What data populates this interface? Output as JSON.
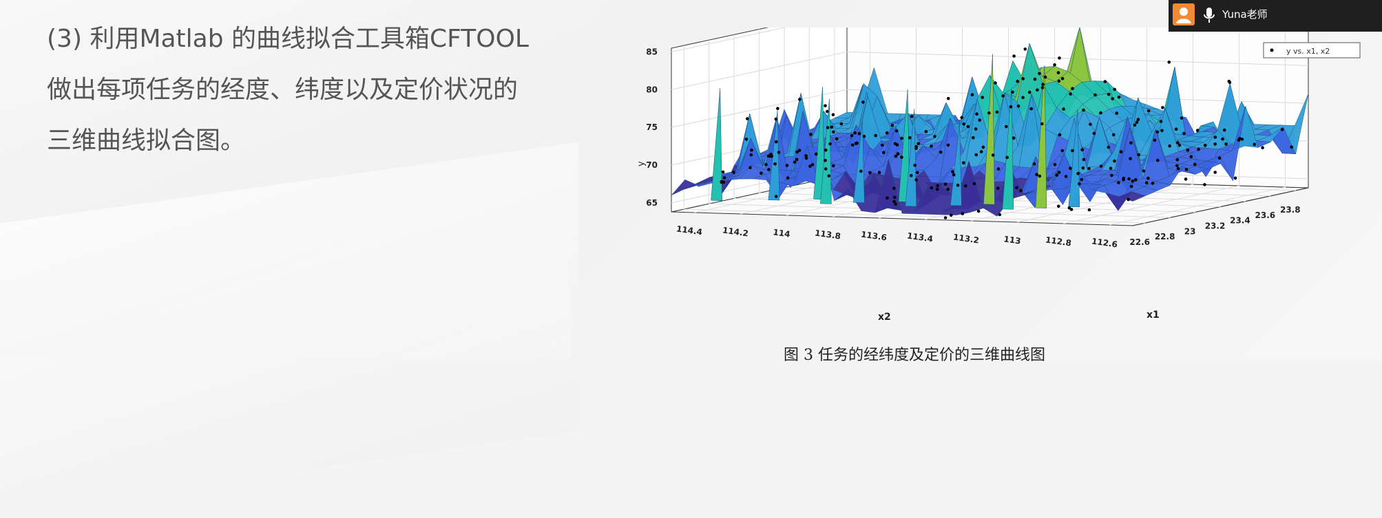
{
  "slide": {
    "text_lines": [
      "(3) 利用Matlab 的曲线拟合工具箱CFTOOL",
      "做出每项任务的经度、纬度以及定价状况的",
      "三维曲线拟合图。"
    ],
    "caption": "图 3  任务的经纬度及定价的三维曲线图"
  },
  "presenter": {
    "name": "Yuna老师",
    "icons": [
      "user-avatar-icon",
      "microphone-icon"
    ],
    "accent": "#f08a34"
  },
  "chart_data": {
    "type": "surface3d",
    "title": "",
    "legend": {
      "label": "y vs. x1, x2",
      "placement": "top-right"
    },
    "zlabel": "y",
    "xlabel": "x2",
    "ylabel": "x1",
    "z_ticks": [
      "85",
      "80",
      "75",
      "70",
      "65"
    ],
    "x2_ticks": [
      "114.4",
      "114.2",
      "114",
      "113.8",
      "113.6",
      "113.4",
      "113.2",
      "113",
      "112.8",
      "112.6"
    ],
    "x1_ticks": [
      "22.6",
      "22.8",
      "23",
      "23.2",
      "23.4",
      "23.6",
      "23.8"
    ],
    "zlim": [
      63.5,
      86
    ],
    "grid": true,
    "colormap": [
      "#3a2f9a",
      "#3b64e0",
      "#2f9fd8",
      "#25c1b0",
      "#8cc640",
      "#e7d13a"
    ],
    "peaks_x2": [
      114.3,
      114.1,
      113.95,
      113.85,
      113.75,
      113.6,
      113.5,
      113.35,
      113.25,
      113.1,
      113.0,
      112.9
    ],
    "peaks_z": [
      80,
      77,
      80,
      79,
      76,
      80,
      78,
      76,
      85,
      81,
      84,
      78
    ]
  }
}
